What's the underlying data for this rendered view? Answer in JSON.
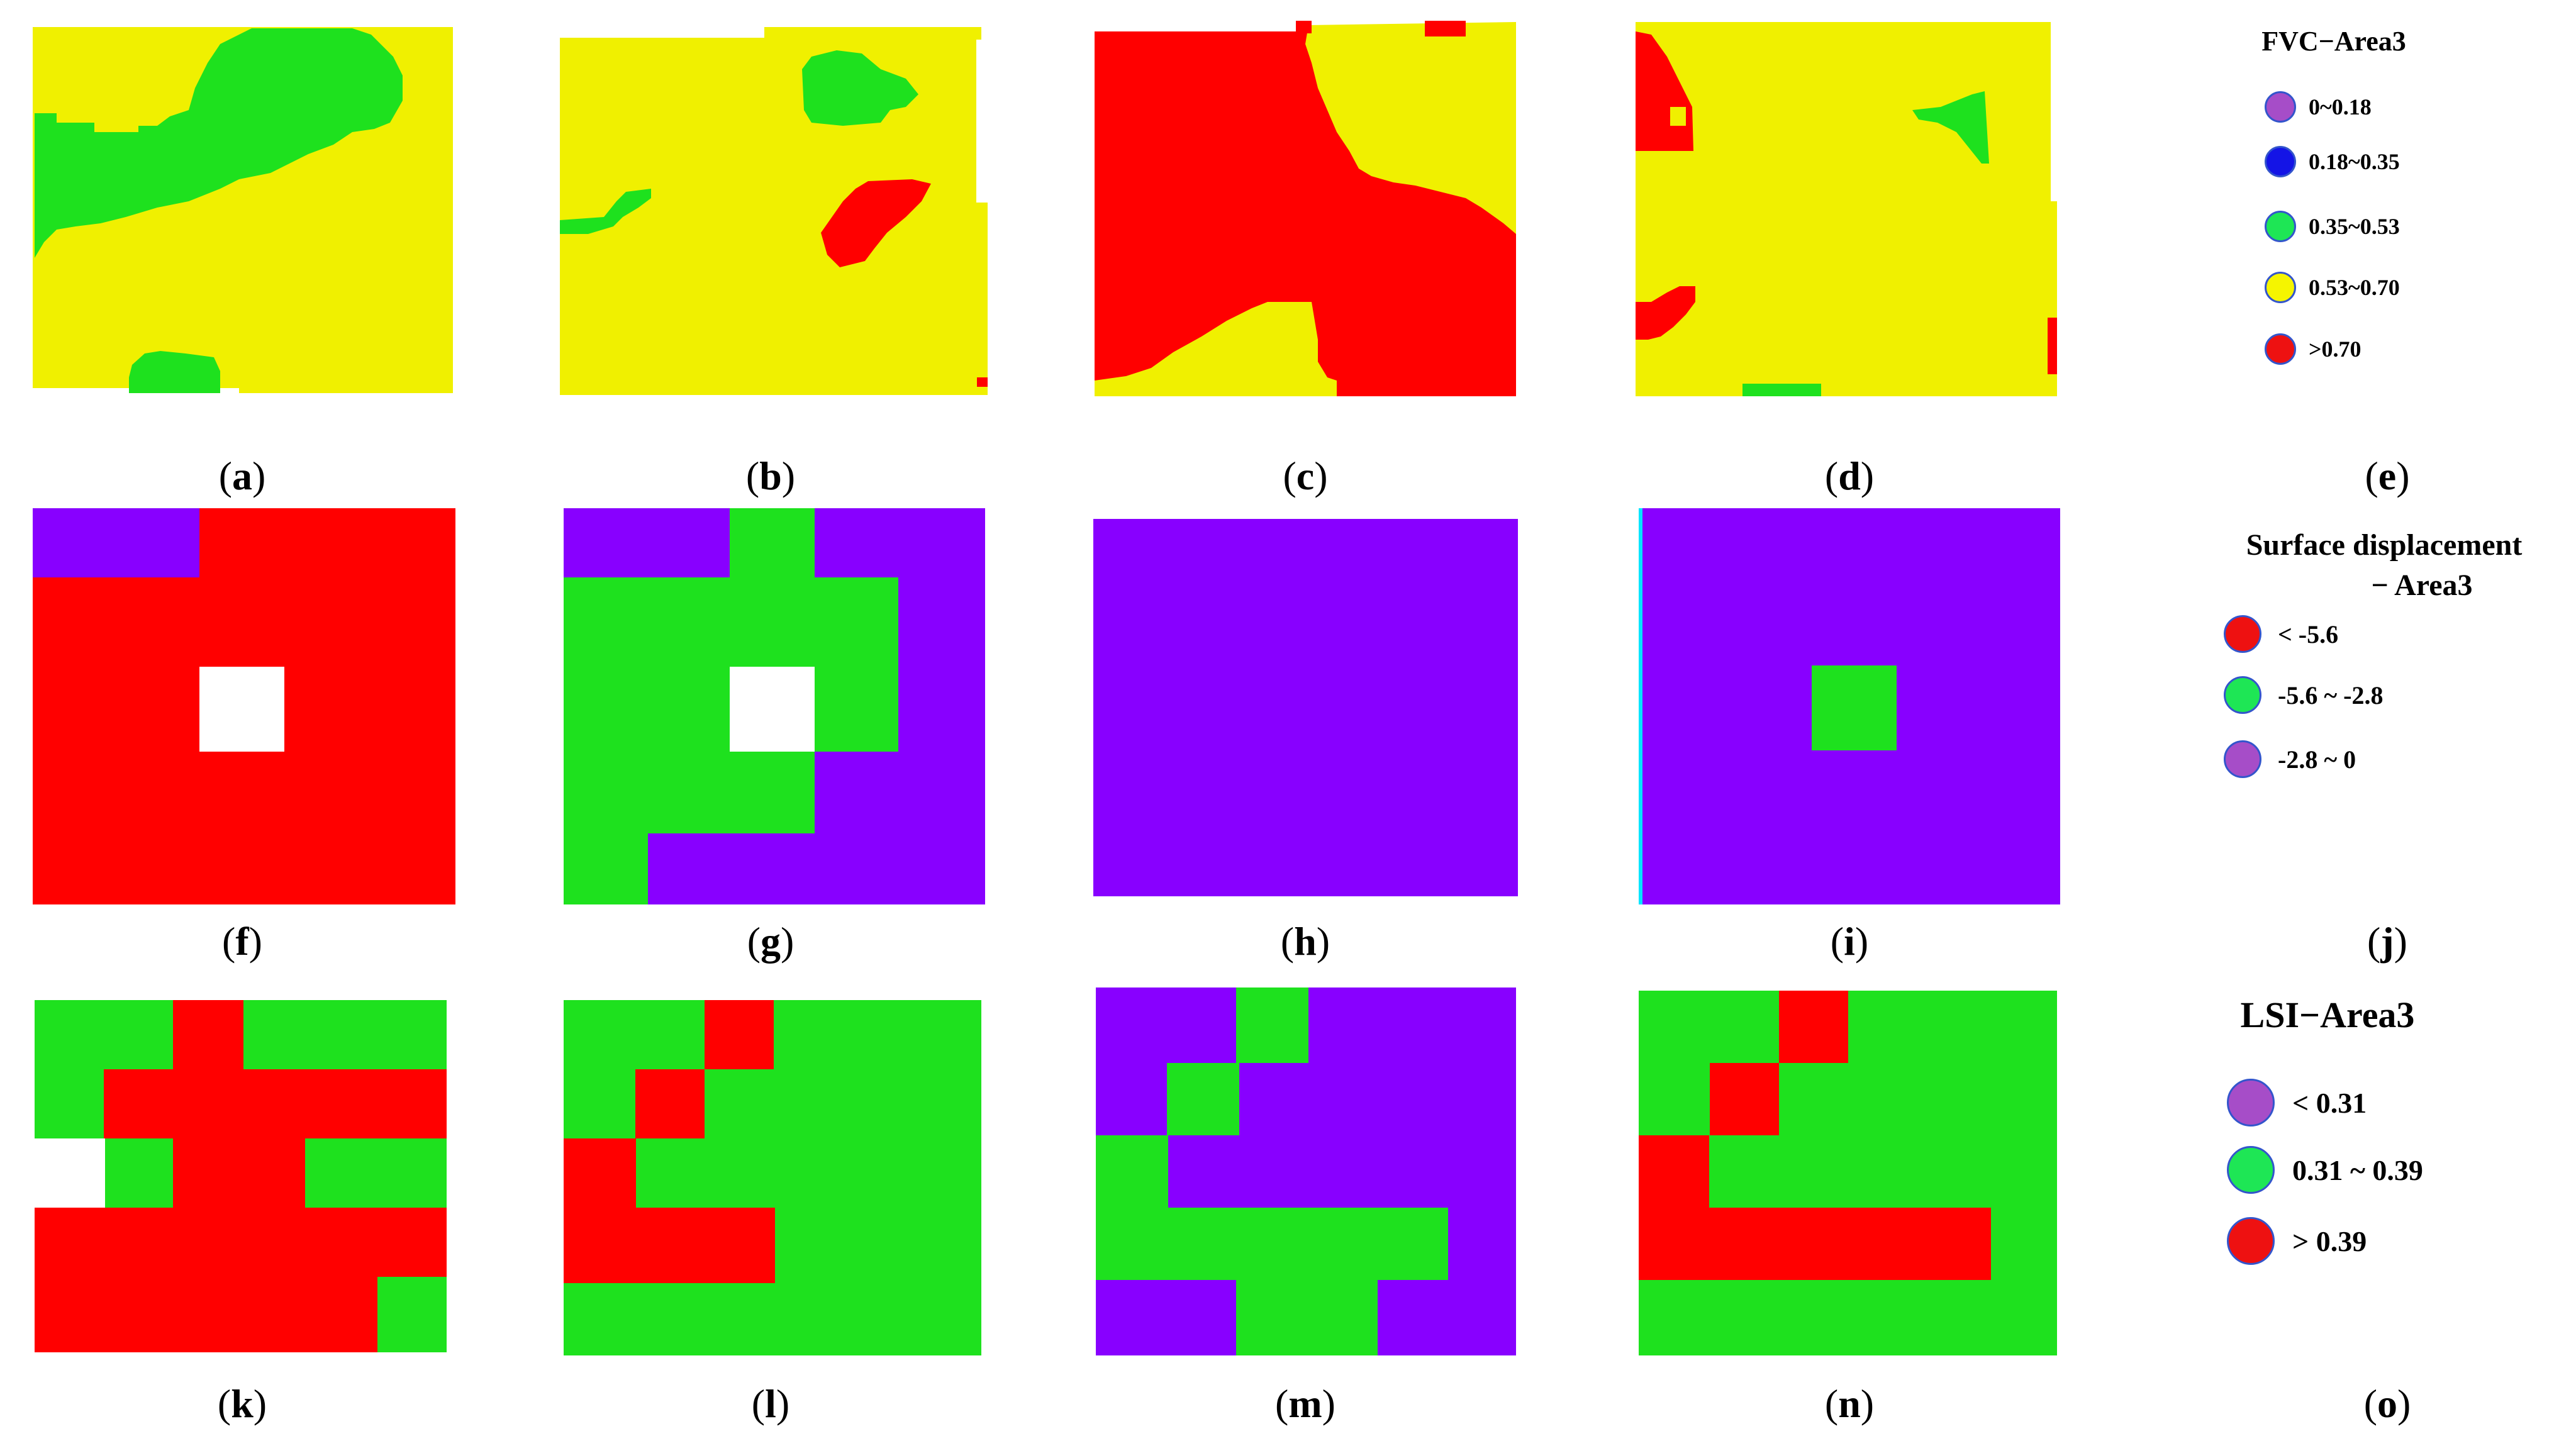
{
  "colors": {
    "yellow": "#f0f000",
    "green": "#1ee11e",
    "red": "#ff0000",
    "purple": "#8800ff",
    "blue": "#1a1ae6",
    "white": "#ffffff",
    "legend_purple": "#a64dc8",
    "legend_blue": "#1414e6",
    "legend_green": "#1ee655",
    "legend_yellow": "#f5f500",
    "legend_red": "#ee1111",
    "dot_border": "#3355cc"
  },
  "panels": [
    {
      "id": "a",
      "label": "a"
    },
    {
      "id": "b",
      "label": "b"
    },
    {
      "id": "c",
      "label": "c"
    },
    {
      "id": "d",
      "label": "d"
    },
    {
      "id": "e",
      "label": "e"
    },
    {
      "id": "f",
      "label": "f"
    },
    {
      "id": "g",
      "label": "g"
    },
    {
      "id": "h",
      "label": "h"
    },
    {
      "id": "i",
      "label": "i"
    },
    {
      "id": "j",
      "label": "j"
    },
    {
      "id": "k",
      "label": "k"
    },
    {
      "id": "l",
      "label": "l"
    },
    {
      "id": "m",
      "label": "m"
    },
    {
      "id": "n",
      "label": "n"
    },
    {
      "id": "o",
      "label": "o"
    }
  ],
  "legends": {
    "fvc": {
      "title": "FVC−Area3",
      "items": [
        {
          "label": "0~0.18",
          "color": "legend_purple"
        },
        {
          "label": "0.18~0.35",
          "color": "legend_blue"
        },
        {
          "label": "0.35~0.53",
          "color": "legend_green"
        },
        {
          "label": "0.53~0.70",
          "color": "legend_yellow"
        },
        {
          "label": ">0.70",
          "color": "legend_red"
        }
      ]
    },
    "displacement": {
      "title_line1": "Surface displacement",
      "title_line2": "− Area3",
      "items": [
        {
          "label": "< -5.6",
          "color": "legend_red"
        },
        {
          "label": "-5.6 ~ -2.8",
          "color": "legend_green"
        },
        {
          "label": "-2.8 ~ 0",
          "color": "legend_purple"
        }
      ]
    },
    "lsi": {
      "title": "LSI−Area3",
      "items": [
        {
          "label": "< 0.31",
          "color": "legend_purple"
        },
        {
          "label": "0.31 ~ 0.39",
          "color": "legend_green"
        },
        {
          "label": "> 0.39",
          "color": "legend_red"
        }
      ]
    }
  }
}
